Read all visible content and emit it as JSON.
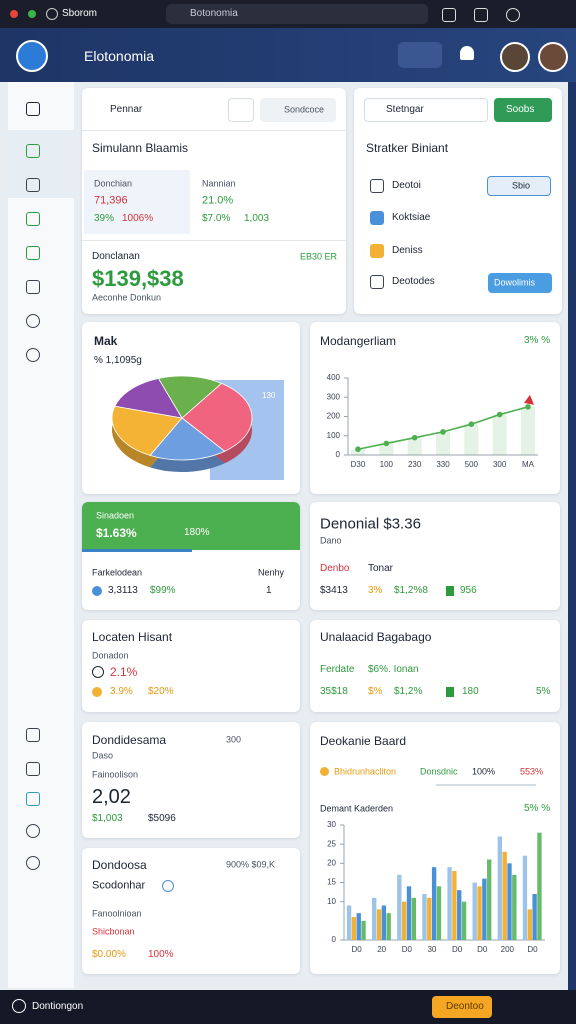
{
  "browser": {
    "tab": "Sborom",
    "address": "Botonomia"
  },
  "header": {
    "brand": "Elotonomia"
  },
  "card_a": {
    "search": "Pennar",
    "button": "Sondcoce",
    "title": "Simulann Blaamis",
    "stat1": {
      "label": "Donchian",
      "value": "71,396",
      "sub1": "39%",
      "sub2": "1006%"
    },
    "stat2": {
      "label": "Nannian",
      "value": "21.0%",
      "sub1": "$7.0%",
      "sub2": "1,003"
    },
    "total_label": "Donclanan",
    "total_tag": "EB30 ER",
    "total": "$139,$38",
    "total_note": "Aeconhe Donkun"
  },
  "card_b": {
    "search": "Stetngar",
    "button": "Soobs",
    "title": "Stratker Biniant",
    "items": [
      {
        "label": "Deotoi",
        "button": "Sbio"
      },
      {
        "label": "Koktsiae"
      },
      {
        "label": "Deniss"
      },
      {
        "label": "Deotodes",
        "button": "Dowolimis"
      }
    ]
  },
  "pie_card": {
    "title": "Mak",
    "subtitle": "% 1,1095g",
    "badge": "130",
    "chart_data": {
      "type": "pie",
      "values": [
        30,
        18,
        22,
        15,
        15
      ],
      "colors": [
        "#f0647f",
        "#6d9ee0",
        "#f5b335",
        "#8e4bb0",
        "#6ab04c"
      ]
    }
  },
  "line_card": {
    "chart_data": {
      "type": "line",
      "title": "Modangerliam",
      "corner": "3% %",
      "categories": [
        "D30",
        "100",
        "230",
        "330",
        "500",
        "300",
        "MA"
      ],
      "values": [
        30,
        60,
        90,
        120,
        160,
        210,
        250
      ],
      "color": "#4caf50",
      "ylim": [
        0,
        400
      ],
      "yticks": [
        0,
        100,
        200,
        300,
        400
      ]
    }
  },
  "green_card": {
    "label": "Sinadoen",
    "value": "$1.63%",
    "badge": "180%",
    "row_label": "Farkelodean",
    "row_tag": "Nenhy",
    "row": [
      "3,3113",
      "$99%",
      "1"
    ]
  },
  "revenue_card": {
    "title": "Denonial $3.36",
    "sub": "Dano",
    "col1": "Denbo",
    "col2": "Tonar",
    "row": [
      "$3413",
      "3%",
      "$1,2%8",
      "956"
    ]
  },
  "location_card": {
    "title": "Locaten Hisant",
    "sub": "Donadon",
    "value": "2.1%",
    "row": [
      "3.9%",
      "$20%"
    ]
  },
  "unalaacid_card": {
    "title": "Unalaacid Bagabago",
    "sub": "Ferdate",
    "sub2": "$6%. Ionan",
    "row": [
      "35$18",
      "$%",
      "$1,2%",
      "180",
      "5%"
    ]
  },
  "dond_card": {
    "title": "Dondidesama",
    "tag": "300",
    "sub": "Daso",
    "label": "Fainoolison",
    "value": "2,02",
    "row": [
      "$1,003",
      "$5096"
    ]
  },
  "bar_card": {
    "title": "Deokanie Baard",
    "legend": [
      "Bhidrunhacliton",
      "Donsdnic",
      "100%",
      "553%"
    ],
    "chart_data": {
      "type": "bar",
      "subtitle": "Demant Kaderden",
      "corner": "5% %",
      "categories": [
        "D0",
        "20",
        "D0",
        "30",
        "D0",
        "D0",
        "200",
        "D0"
      ],
      "series": [
        {
          "color": "#9cc3e8",
          "values": [
            9,
            11,
            17,
            12,
            19,
            15,
            27,
            22
          ]
        },
        {
          "color": "#f2b134",
          "values": [
            6,
            8,
            10,
            11,
            18,
            14,
            23,
            8
          ]
        },
        {
          "color": "#4a90d9",
          "values": [
            7,
            9,
            14,
            19,
            13,
            16,
            20,
            12
          ]
        },
        {
          "color": "#66bb6a",
          "values": [
            5,
            7,
            11,
            14,
            10,
            21,
            17,
            28
          ]
        }
      ],
      "ylim": [
        0,
        30
      ],
      "yticks": [
        0,
        10,
        15,
        20,
        25,
        30
      ]
    }
  },
  "dondoosa_card": {
    "title": "Dondoosa",
    "tag": "900% $09,K",
    "sub": "Scodonhar",
    "label": "Fanoolnioan",
    "label2": "Shicbonan",
    "row": [
      "$0.00%",
      "100%"
    ]
  },
  "footer": {
    "label": "Dontiongon",
    "button": "Deontoo"
  }
}
